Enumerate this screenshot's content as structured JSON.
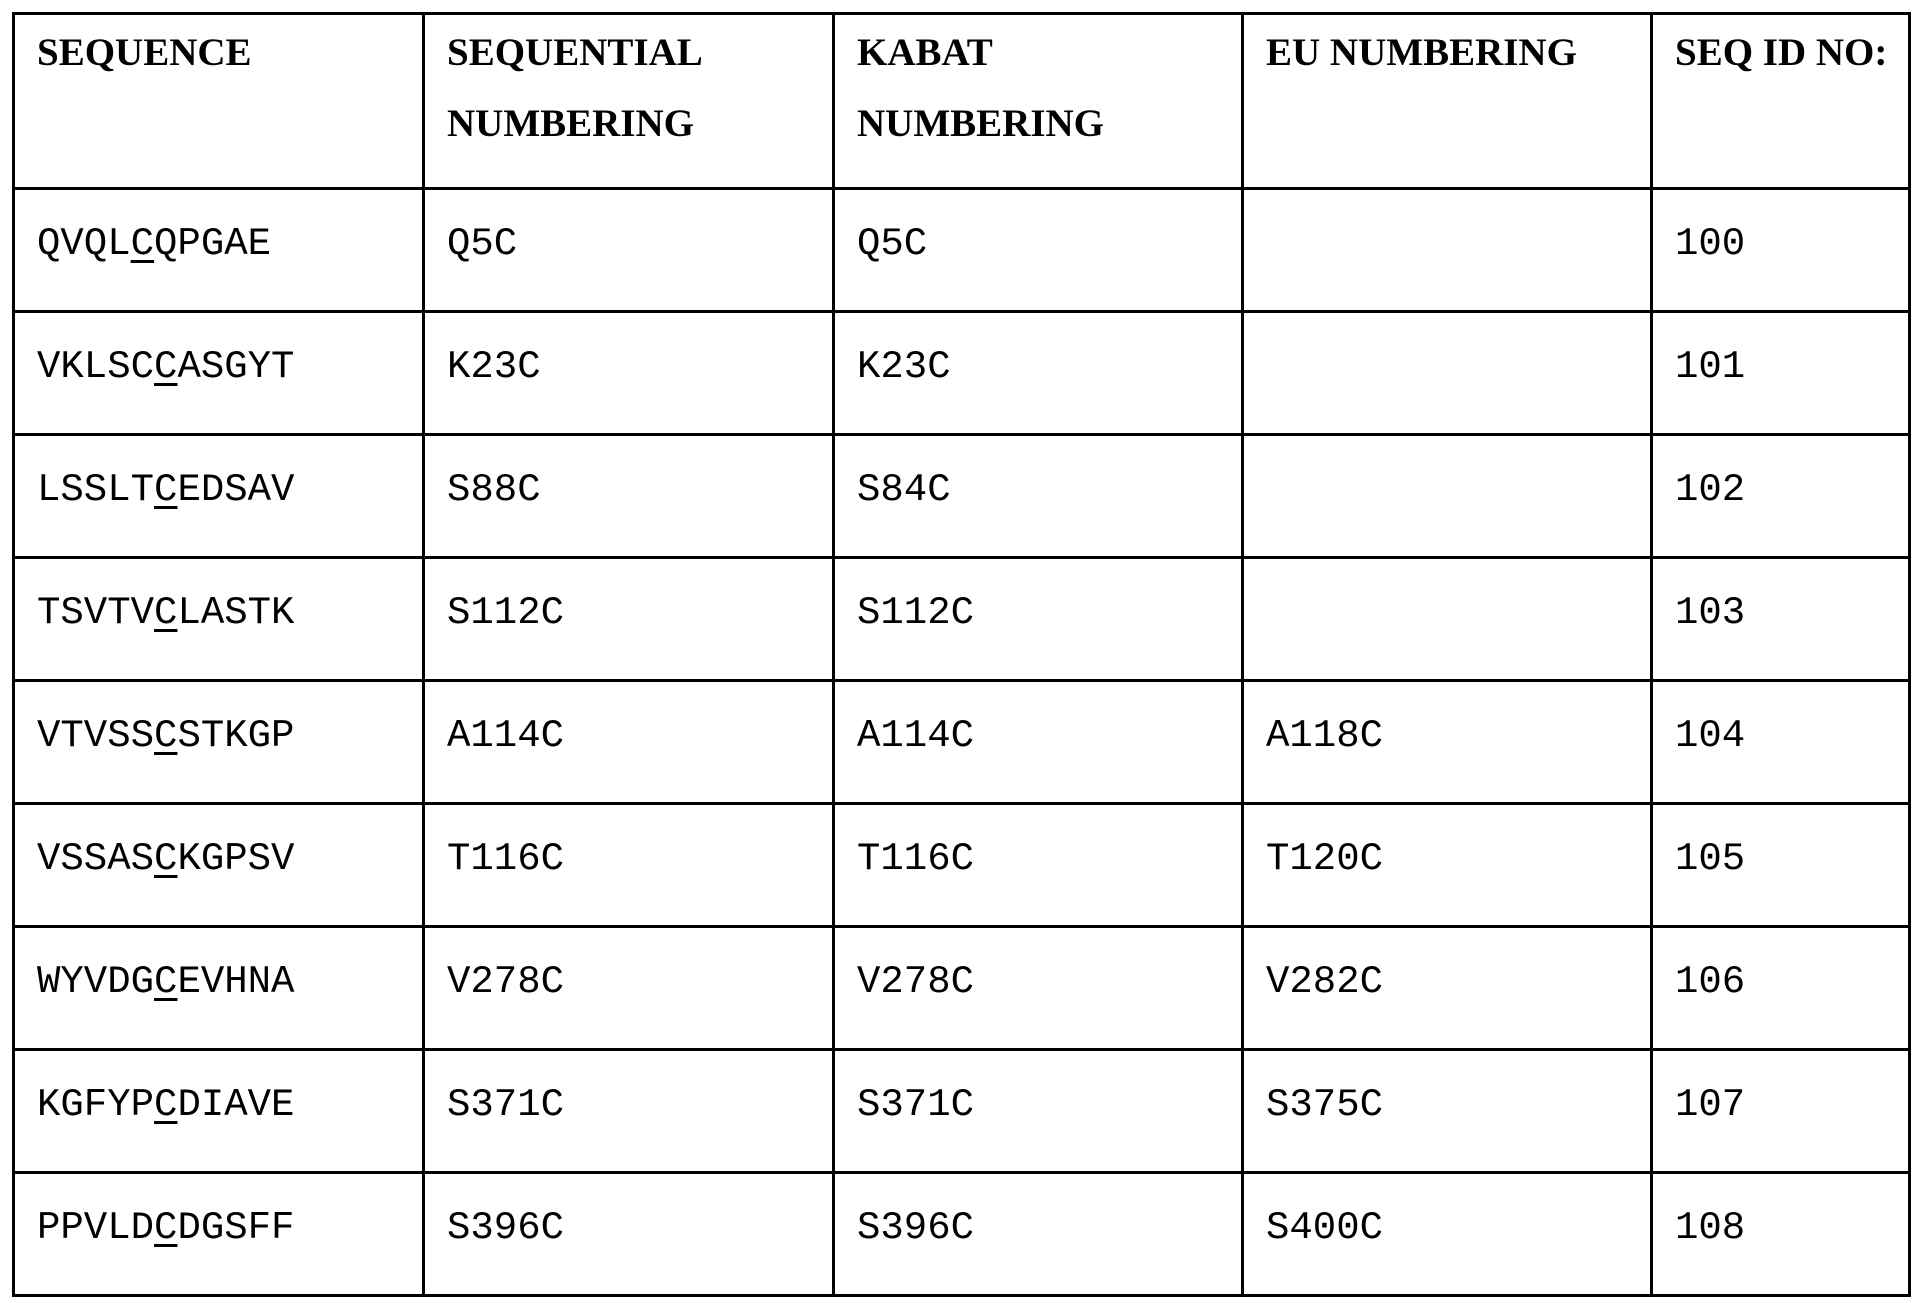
{
  "table": {
    "headers": [
      "SEQUENCE",
      "SEQUENTIAL NUMBERING",
      "KABAT NUMBERING",
      "EU NUMBERING",
      "SEQ ID NO:"
    ],
    "rows": [
      {
        "sequence": "QVQLCQPGAE",
        "underlined_position": 5,
        "sequential": "Q5C",
        "kabat": "Q5C",
        "eu": "",
        "seq_id": "100"
      },
      {
        "sequence": "VKLSCCASGYT",
        "underlined_position": 6,
        "sequential": "K23C",
        "kabat": "K23C",
        "eu": "",
        "seq_id": "101"
      },
      {
        "sequence": "LSSLTCEDSAV",
        "underlined_position": 6,
        "sequential": "S88C",
        "kabat": "S84C",
        "eu": "",
        "seq_id": "102"
      },
      {
        "sequence": "TSVTVCLASTK",
        "underlined_position": 6,
        "sequential": "S112C",
        "kabat": "S112C",
        "eu": "",
        "seq_id": "103"
      },
      {
        "sequence": "VTVSSCSTKGP",
        "underlined_position": 6,
        "sequential": "A114C",
        "kabat": "A114C",
        "eu": "A118C",
        "seq_id": "104"
      },
      {
        "sequence": "VSSASCKGPSV",
        "underlined_position": 6,
        "sequential": "T116C",
        "kabat": "T116C",
        "eu": "T120C",
        "seq_id": "105"
      },
      {
        "sequence": "WYVDGCEVHNA",
        "underlined_position": 6,
        "sequential": "V278C",
        "kabat": "V278C",
        "eu": "V282C",
        "seq_id": "106"
      },
      {
        "sequence": "KGFYPCDIAVE",
        "underlined_position": 6,
        "sequential": "S371C",
        "kabat": "S371C",
        "eu": "S375C",
        "seq_id": "107"
      },
      {
        "sequence": "PPVLDCDGSFF",
        "underlined_position": 6,
        "sequential": "S396C",
        "kabat": "S396C",
        "eu": "S400C",
        "seq_id": "108"
      }
    ]
  }
}
